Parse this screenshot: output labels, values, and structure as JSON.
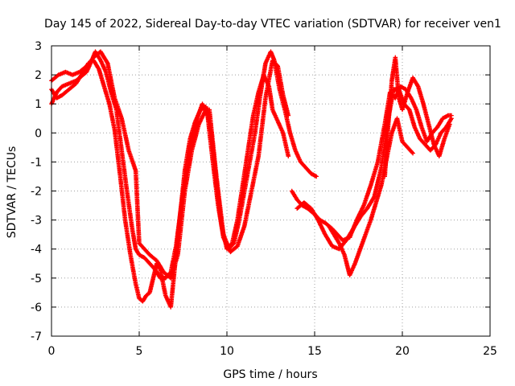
{
  "chart_data": {
    "type": "scatter",
    "title": "Day 145 of 2022, Sidereal Day-to-day VTEC variation (SDTVAR) for receiver ven1",
    "xlabel": "GPS time / hours",
    "ylabel": "SDTVAR / TECUs",
    "xlim": [
      0,
      25
    ],
    "ylim": [
      -7,
      3
    ],
    "xticks": [
      0,
      5,
      10,
      15,
      20,
      25
    ],
    "yticks": [
      -7,
      -6,
      -5,
      -4,
      -3,
      -2,
      -1,
      0,
      1,
      2,
      3
    ],
    "grid": true,
    "legend": "none",
    "marker": "+",
    "color": "#ff0000",
    "series": [
      {
        "x": [
          0.0,
          0.3,
          0.6,
          1.0,
          1.4,
          1.8,
          2.0,
          2.3,
          2.5,
          2.8,
          3.1,
          3.4,
          3.7,
          4.0,
          4.3,
          4.6,
          4.8,
          5.0,
          5.3,
          5.6,
          5.9,
          6.2,
          6.5,
          6.8,
          7.1,
          7.4,
          7.7,
          8.0,
          8.3,
          8.6,
          8.9,
          9.2,
          9.5,
          9.8,
          10.1,
          10.4,
          10.7,
          11.0,
          11.3,
          11.6,
          11.9,
          12.2,
          12.5,
          12.7,
          13.0,
          13.3,
          13.6,
          13.9,
          14.2,
          14.5,
          14.8,
          15.1
        ],
        "y": [
          1.0,
          1.4,
          1.6,
          1.7,
          1.8,
          2.0,
          2.1,
          2.5,
          2.8,
          2.5,
          2.1,
          1.4,
          0.8,
          -0.6,
          -2.0,
          -3.3,
          -4.0,
          -4.2,
          -4.3,
          -4.5,
          -4.7,
          -5.0,
          -5.0,
          -4.8,
          -3.9,
          -2.5,
          -1.3,
          -0.3,
          0.5,
          1.0,
          0.6,
          -1.0,
          -2.5,
          -3.6,
          -4.0,
          -3.8,
          -3.0,
          -2.0,
          -1.0,
          0.0,
          1.3,
          2.4,
          2.8,
          2.5,
          1.5,
          0.8,
          0.0,
          -0.6,
          -1.0,
          -1.2,
          -1.4,
          -1.5
        ]
      },
      {
        "x": [
          0.0,
          0.3,
          0.6,
          1.0,
          1.4,
          1.8,
          2.1,
          2.4,
          2.7,
          3.0,
          3.3,
          3.6,
          3.9,
          4.2,
          4.5,
          4.8,
          5.0,
          5.2,
          5.4,
          5.6,
          5.8,
          6.0,
          6.2,
          6.5,
          6.8,
          7.0,
          7.3,
          7.6,
          7.9,
          8.2,
          8.5,
          8.8,
          9.1,
          9.4,
          9.7,
          10.0,
          10.3,
          10.6,
          10.9,
          11.2,
          11.5,
          11.8,
          12.1,
          12.4,
          12.6,
          12.9,
          13.2,
          13.5
        ],
        "y": [
          1.5,
          1.2,
          1.3,
          1.5,
          1.7,
          2.1,
          2.4,
          2.5,
          2.2,
          1.6,
          1.0,
          0.1,
          -1.4,
          -3.0,
          -4.2,
          -5.2,
          -5.7,
          -5.8,
          -5.6,
          -5.5,
          -5.0,
          -4.5,
          -4.7,
          -5.6,
          -6.0,
          -4.8,
          -3.0,
          -1.3,
          -0.2,
          0.4,
          0.8,
          0.9,
          0.0,
          -1.7,
          -3.2,
          -4.0,
          -3.8,
          -3.0,
          -1.8,
          -0.6,
          0.6,
          1.4,
          2.0,
          1.6,
          0.8,
          0.4,
          0.0,
          -0.8
        ]
      },
      {
        "x": [
          0.0,
          0.4,
          0.8,
          1.2,
          1.6,
          2.0,
          2.4,
          2.8,
          3.2,
          3.6,
          4.0,
          4.4,
          4.8,
          5.0,
          5.3,
          5.6,
          6.0,
          6.4,
          6.8,
          7.2,
          7.6,
          8.0,
          8.4,
          8.8,
          9.0,
          9.4,
          9.8,
          10.2,
          10.6,
          11.0,
          11.4,
          11.8,
          12.2,
          12.6,
          12.9,
          13.2,
          13.5
        ],
        "y": [
          1.8,
          2.0,
          2.1,
          2.0,
          2.1,
          2.3,
          2.6,
          2.8,
          2.4,
          1.2,
          0.5,
          -0.6,
          -1.3,
          -3.8,
          -4.0,
          -4.2,
          -4.4,
          -4.8,
          -5.0,
          -4.2,
          -2.0,
          -0.6,
          0.3,
          0.8,
          0.8,
          -1.5,
          -3.5,
          -4.1,
          -3.9,
          -3.2,
          -2.0,
          -0.8,
          1.2,
          2.5,
          2.3,
          1.3,
          0.6
        ]
      },
      {
        "x": [
          13.7,
          14.0,
          14.3,
          14.6,
          15.0,
          15.3,
          15.6,
          16.0,
          16.3,
          16.6,
          17.0,
          17.4,
          17.8,
          18.2,
          18.6,
          19.0,
          19.3,
          19.6,
          19.9,
          20.2,
          20.5,
          20.8,
          21.1,
          21.4,
          21.7,
          22.0,
          22.3,
          22.6,
          22.8
        ],
        "y": [
          -2.0,
          -2.3,
          -2.5,
          -2.6,
          -2.8,
          -3.0,
          -3.1,
          -3.3,
          -3.5,
          -3.7,
          -3.6,
          -3.0,
          -2.5,
          -1.8,
          -1.0,
          0.3,
          1.4,
          1.2,
          1.6,
          1.5,
          1.2,
          0.8,
          0.2,
          -0.3,
          0.0,
          0.2,
          0.5,
          0.6,
          0.6
        ]
      },
      {
        "x": [
          14.0,
          14.4,
          14.8,
          15.2,
          15.6,
          16.0,
          16.4,
          16.8,
          17.2,
          17.6,
          18.0,
          18.4,
          18.8,
          19.2,
          19.5,
          19.8,
          20.1,
          20.4,
          20.7,
          21.0,
          21.3,
          21.6,
          21.9,
          22.2,
          22.5,
          22.8
        ],
        "y": [
          -2.6,
          -2.4,
          -2.6,
          -3.0,
          -3.5,
          -3.9,
          -4.0,
          -3.7,
          -3.3,
          -2.9,
          -2.6,
          -2.2,
          -1.2,
          0.5,
          1.5,
          1.5,
          1.0,
          0.8,
          0.2,
          -0.2,
          -0.4,
          -0.6,
          -0.4,
          0.0,
          0.2,
          0.5
        ]
      },
      {
        "x": [
          15.8,
          16.1,
          16.4,
          16.7,
          17.0,
          17.3,
          17.6,
          17.9,
          18.2,
          18.5,
          18.8,
          19.1,
          19.4,
          19.7,
          20.0,
          20.3,
          20.6
        ],
        "y": [
          -3.2,
          -3.5,
          -3.8,
          -4.2,
          -4.9,
          -4.5,
          -4.0,
          -3.5,
          -3.0,
          -2.4,
          -1.8,
          -0.9,
          0.0,
          0.5,
          -0.3,
          -0.5,
          -0.7
        ]
      },
      {
        "x": [
          19.0,
          19.2,
          19.4,
          19.6,
          19.8,
          20.0,
          20.3,
          20.6,
          20.9,
          21.2,
          21.5,
          21.8,
          22.1,
          22.4,
          22.7
        ],
        "y": [
          -1.5,
          0.3,
          1.8,
          2.6,
          1.2,
          0.8,
          1.4,
          1.9,
          1.6,
          1.0,
          0.3,
          -0.4,
          -0.8,
          -0.2,
          0.3
        ]
      }
    ]
  }
}
